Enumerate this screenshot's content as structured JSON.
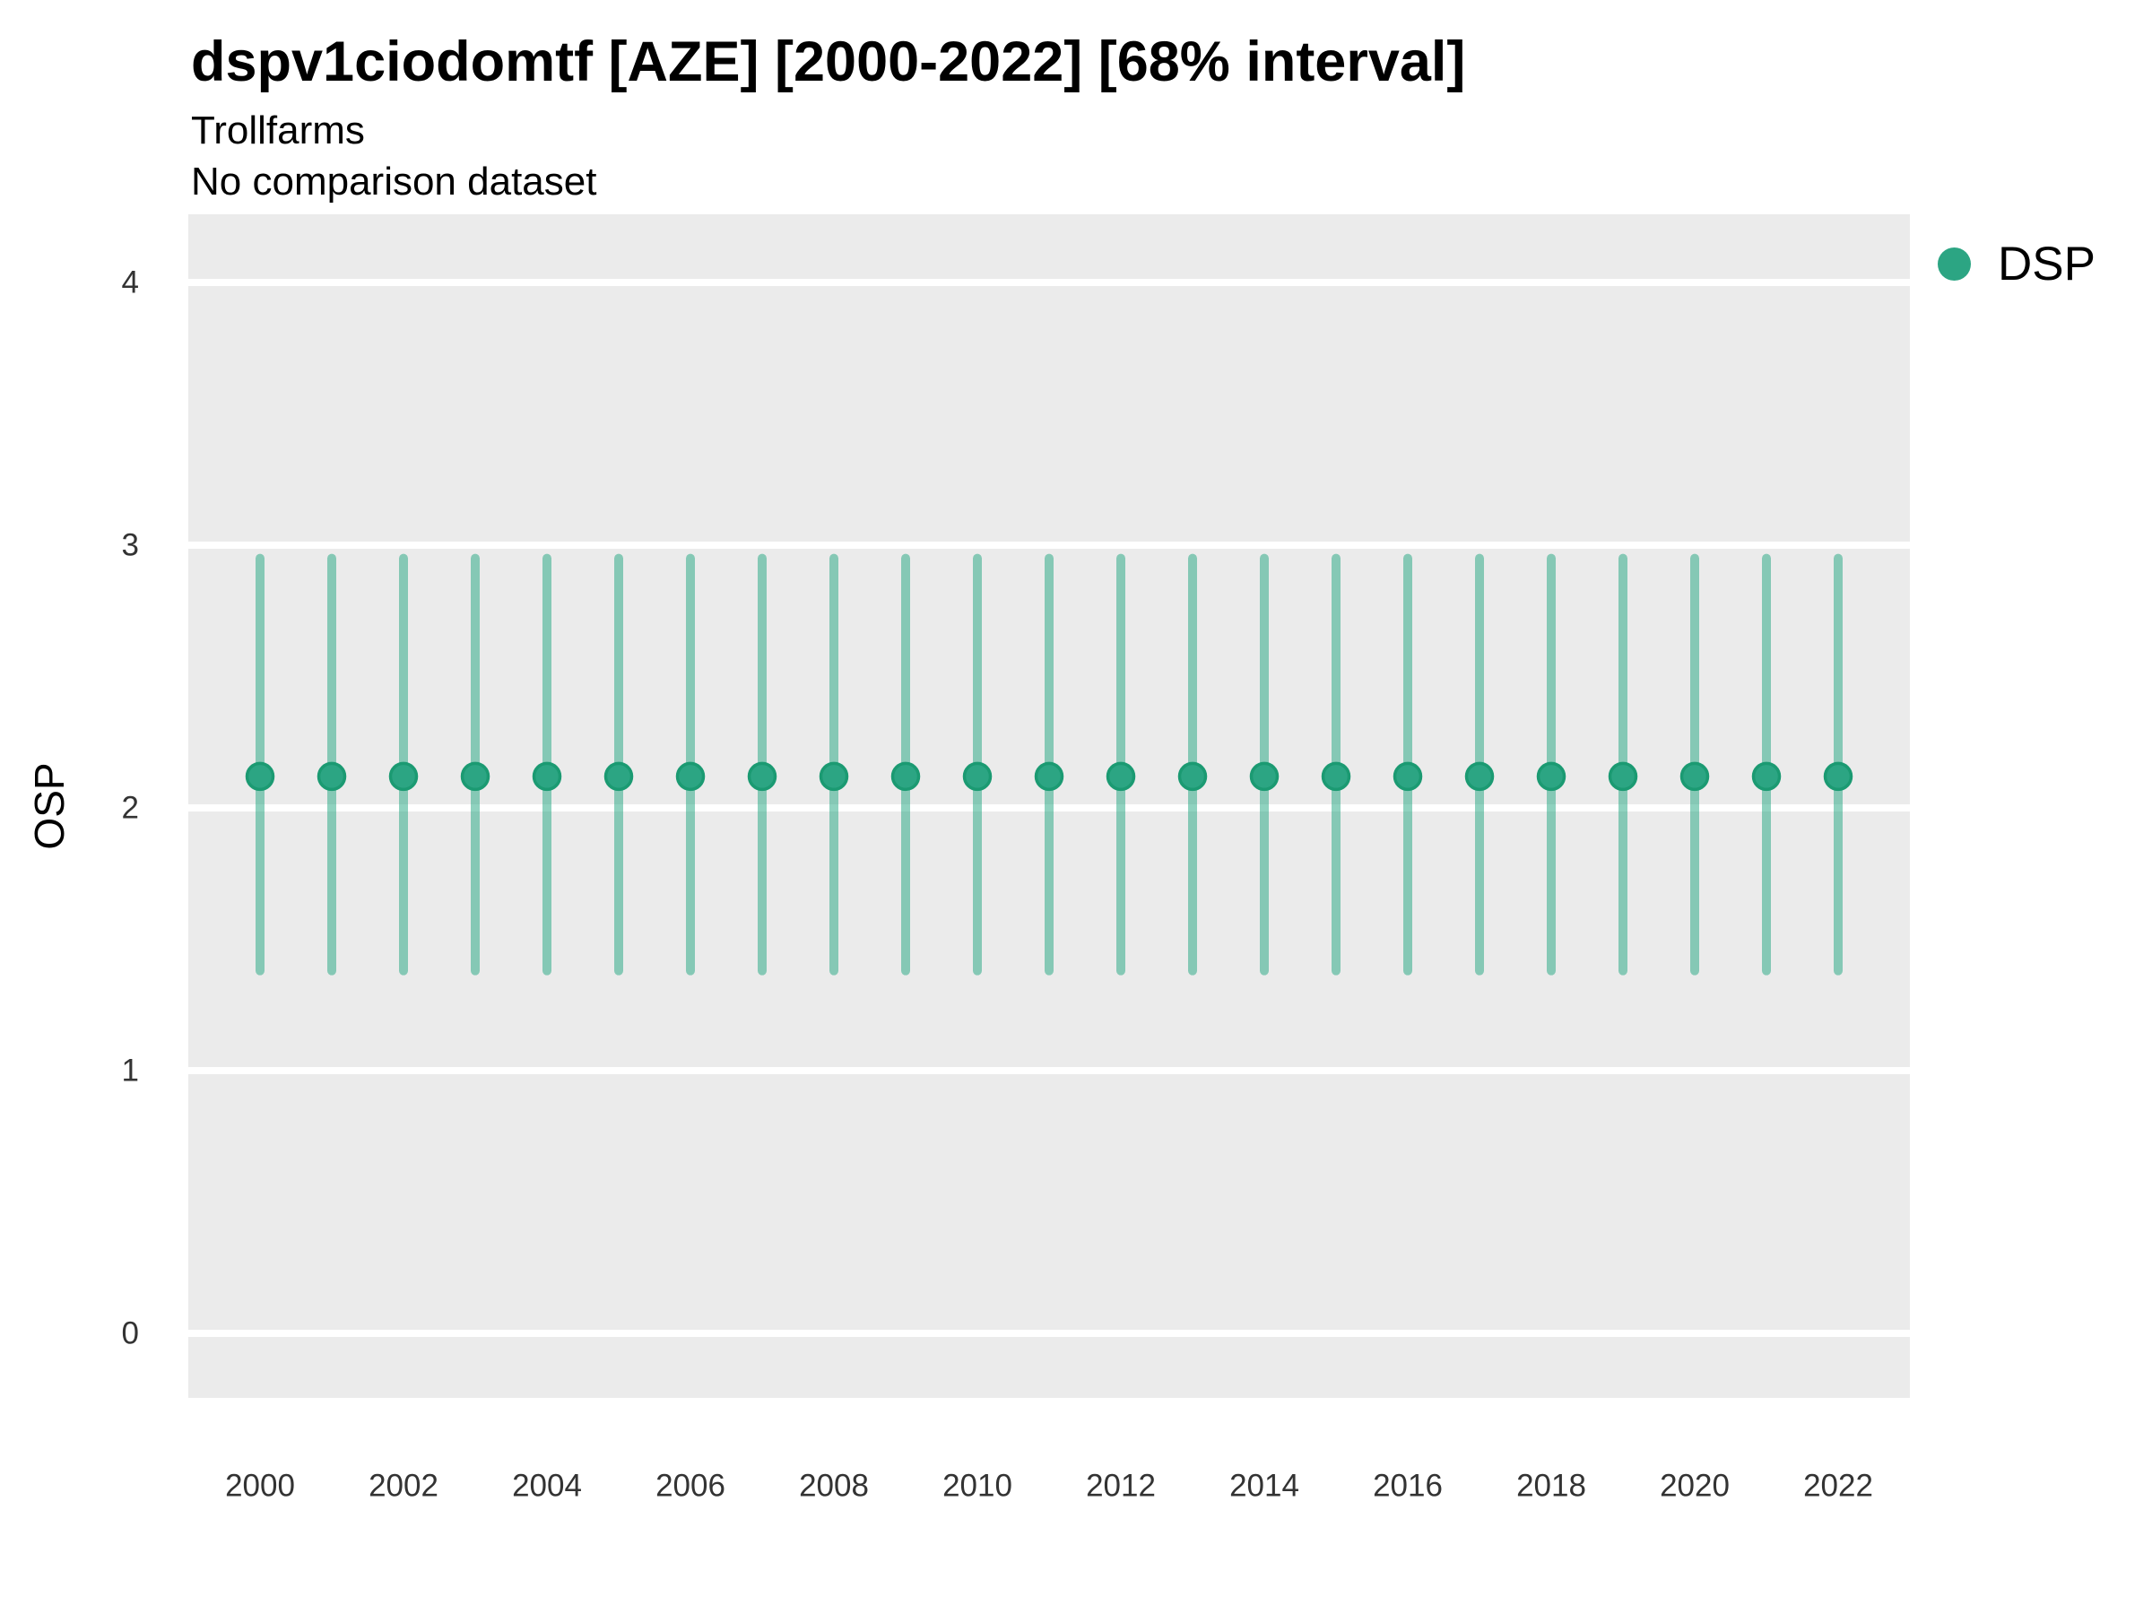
{
  "header": {
    "title": "dspv1ciodomtf [AZE] [2000-2022] [68% interval]",
    "subtitle": "Trollfarms",
    "comparison_note": "No comparison dataset"
  },
  "legend": {
    "position": "right-top",
    "items": [
      {
        "label": "DSP",
        "marker": "circle",
        "color": "#2ca583"
      }
    ]
  },
  "chart_data": {
    "type": "pointrange",
    "title": "dspv1ciodomtf [AZE] [2000-2022] [68% interval]",
    "subtitle": "Trollfarms",
    "note": "No comparison dataset",
    "interval": "68%",
    "xlabel": "",
    "ylabel": "OSP",
    "x": [
      2000,
      2001,
      2002,
      2003,
      2004,
      2005,
      2006,
      2007,
      2008,
      2009,
      2010,
      2011,
      2012,
      2013,
      2014,
      2015,
      2016,
      2017,
      2018,
      2019,
      2020,
      2021,
      2022
    ],
    "x_tick_labels": [
      "2000",
      "2002",
      "2004",
      "2006",
      "2008",
      "2010",
      "2012",
      "2014",
      "2016",
      "2018",
      "2020",
      "2022"
    ],
    "y_ticks": [
      0,
      1,
      2,
      3,
      4
    ],
    "ylim": [
      -0.25,
      4.27
    ],
    "grid": "horizontal-major-only",
    "legend_position": "right-top",
    "series": [
      {
        "name": "DSP",
        "color": "#2ca583",
        "point_stroke": "#1b9a72",
        "interval_color": "rgba(32,166,128,0.5)",
        "estimate": [
          2.12,
          2.12,
          2.12,
          2.12,
          2.12,
          2.12,
          2.12,
          2.12,
          2.12,
          2.12,
          2.12,
          2.12,
          2.12,
          2.12,
          2.12,
          2.12,
          2.12,
          2.12,
          2.12,
          2.12,
          2.12,
          2.12,
          2.12
        ],
        "lower": [
          1.38,
          1.38,
          1.38,
          1.38,
          1.38,
          1.38,
          1.38,
          1.38,
          1.38,
          1.38,
          1.38,
          1.38,
          1.38,
          1.38,
          1.38,
          1.38,
          1.38,
          1.38,
          1.38,
          1.38,
          1.38,
          1.38,
          1.38
        ],
        "upper": [
          2.95,
          2.95,
          2.95,
          2.95,
          2.95,
          2.95,
          2.95,
          2.95,
          2.95,
          2.95,
          2.95,
          2.95,
          2.95,
          2.95,
          2.95,
          2.95,
          2.95,
          2.95,
          2.95,
          2.95,
          2.95,
          2.95,
          2.95
        ]
      }
    ],
    "colors": {
      "panel_background": "#ebebeb",
      "gridline": "#ffffff",
      "tick_label": "#333333",
      "title": "#000000"
    }
  }
}
